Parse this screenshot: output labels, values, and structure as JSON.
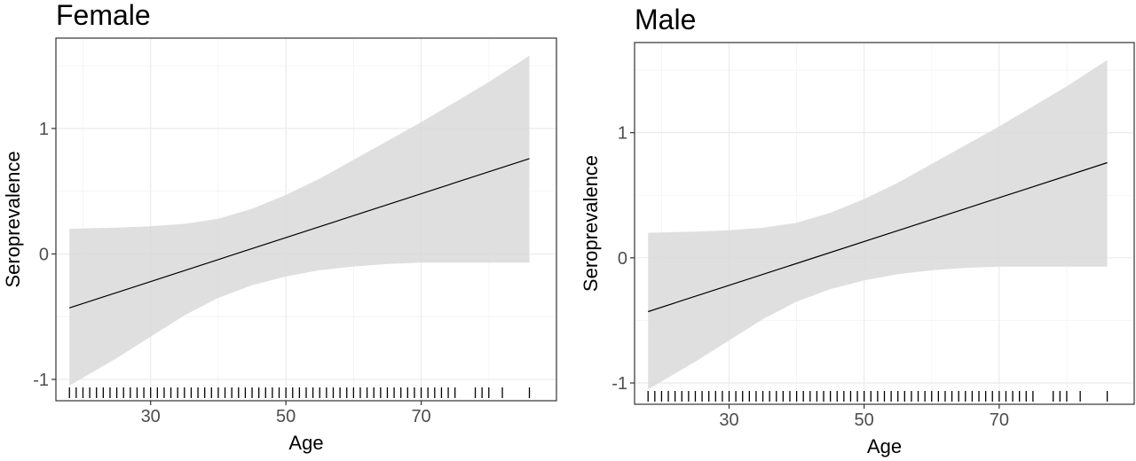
{
  "chart_data": [
    {
      "type": "line",
      "title": "Female",
      "xlabel": "Age",
      "ylabel": "Seroprevalence",
      "xlim": [
        16,
        90
      ],
      "ylim": [
        -1.17,
        1.72
      ],
      "x_ticks": [
        30,
        50,
        70
      ],
      "y_ticks": [
        -1,
        0,
        1
      ],
      "grid": true,
      "series": [
        {
          "x": [
            18,
            86
          ],
          "y": [
            -0.43,
            0.76
          ]
        }
      ],
      "confidence_band": {
        "x": [
          18,
          25,
          30,
          35,
          40,
          45,
          50,
          55,
          60,
          65,
          70,
          75,
          80,
          86
        ],
        "lower": [
          -1.05,
          -0.83,
          -0.66,
          -0.49,
          -0.35,
          -0.25,
          -0.18,
          -0.13,
          -0.1,
          -0.08,
          -0.07,
          -0.07,
          -0.07,
          -0.07
        ],
        "upper": [
          0.2,
          0.21,
          0.22,
          0.24,
          0.28,
          0.36,
          0.47,
          0.6,
          0.75,
          0.9,
          1.05,
          1.21,
          1.37,
          1.58
        ]
      },
      "rug_x": [
        18,
        19,
        20,
        21,
        22,
        23,
        24,
        25,
        26,
        27,
        28,
        29,
        30,
        31,
        32,
        33,
        34,
        35,
        36,
        37,
        38,
        39,
        40,
        41,
        42,
        43,
        44,
        45,
        46,
        47,
        48,
        49,
        50,
        51,
        52,
        53,
        54,
        55,
        56,
        57,
        58,
        59,
        60,
        61,
        62,
        63,
        64,
        65,
        66,
        67,
        68,
        69,
        70,
        71,
        72,
        73,
        74,
        75,
        78,
        79,
        80,
        82,
        86
      ]
    },
    {
      "type": "line",
      "title": "Male",
      "xlabel": "Age",
      "ylabel": "Seroprevalence",
      "xlim": [
        16,
        90
      ],
      "ylim": [
        -1.17,
        1.72
      ],
      "x_ticks": [
        30,
        50,
        70
      ],
      "y_ticks": [
        -1,
        0,
        1
      ],
      "grid": true,
      "series": [
        {
          "x": [
            18,
            86
          ],
          "y": [
            -0.43,
            0.76
          ]
        }
      ],
      "confidence_band": {
        "x": [
          18,
          25,
          30,
          35,
          40,
          45,
          50,
          55,
          60,
          65,
          70,
          75,
          80,
          86
        ],
        "lower": [
          -1.05,
          -0.83,
          -0.66,
          -0.49,
          -0.35,
          -0.25,
          -0.18,
          -0.13,
          -0.1,
          -0.08,
          -0.07,
          -0.07,
          -0.07,
          -0.07
        ],
        "upper": [
          0.2,
          0.21,
          0.22,
          0.24,
          0.28,
          0.36,
          0.47,
          0.6,
          0.75,
          0.9,
          1.05,
          1.21,
          1.37,
          1.58
        ]
      },
      "rug_x": [
        18,
        19,
        20,
        21,
        22,
        23,
        24,
        25,
        26,
        27,
        28,
        29,
        30,
        31,
        32,
        33,
        34,
        35,
        36,
        37,
        38,
        39,
        40,
        41,
        42,
        43,
        44,
        45,
        46,
        47,
        48,
        49,
        50,
        51,
        52,
        53,
        54,
        55,
        56,
        57,
        58,
        59,
        60,
        61,
        62,
        63,
        64,
        65,
        66,
        67,
        68,
        69,
        70,
        71,
        72,
        73,
        74,
        75,
        78,
        79,
        80,
        82,
        86
      ]
    }
  ]
}
